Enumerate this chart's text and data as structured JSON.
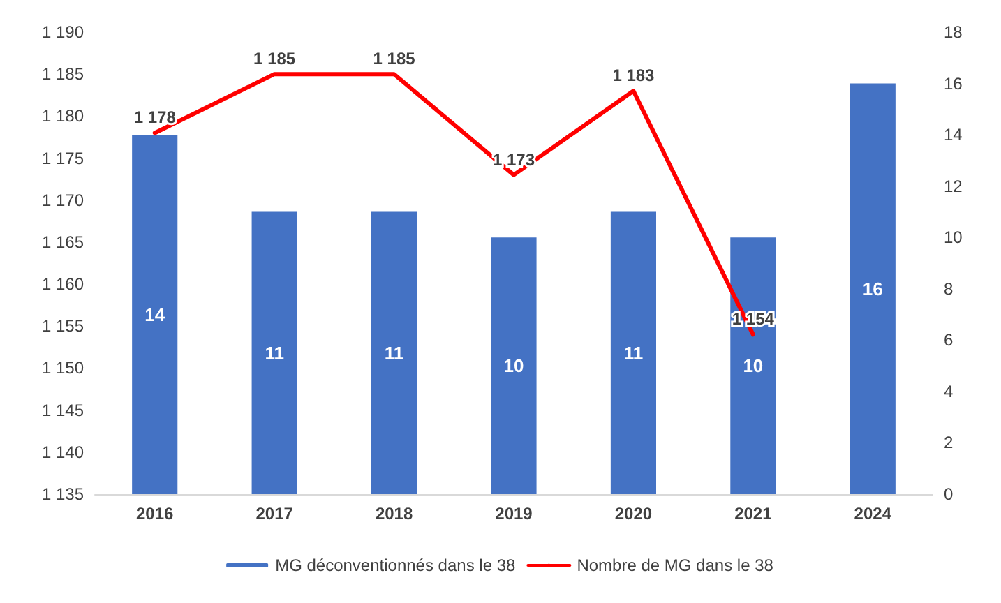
{
  "chart_data": {
    "type": "bar",
    "categories": [
      "2016",
      "2017",
      "2018",
      "2019",
      "2020",
      "2021",
      "2024"
    ],
    "series": [
      {
        "name": "MG déconventionnés dans le 38",
        "axis": "y2",
        "color": "#4472c4",
        "values": [
          14,
          11,
          11,
          10,
          11,
          10,
          16
        ],
        "value_labels": [
          "14",
          "11",
          "11",
          "10",
          "11",
          "10",
          "16"
        ]
      },
      {
        "name": "Nombre de MG dans le 38",
        "type": "line",
        "axis": "y",
        "color": "#ff0000",
        "values": [
          1178,
          1185,
          1185,
          1173,
          1183,
          1154,
          null
        ],
        "value_labels": [
          "1 178",
          "1 185",
          "1 185",
          "1 173",
          "1 183",
          "1 154",
          null
        ]
      }
    ],
    "ylim": [
      1135,
      1190
    ],
    "yticks": [
      {
        "value": 1135,
        "label": "1 135"
      },
      {
        "value": 1140,
        "label": "1 140"
      },
      {
        "value": 1145,
        "label": "1 145"
      },
      {
        "value": 1150,
        "label": "1 150"
      },
      {
        "value": 1155,
        "label": "1 155"
      },
      {
        "value": 1160,
        "label": "1 160"
      },
      {
        "value": 1165,
        "label": "1 165"
      },
      {
        "value": 1170,
        "label": "1 170"
      },
      {
        "value": 1175,
        "label": "1 175"
      },
      {
        "value": 1180,
        "label": "1 180"
      },
      {
        "value": 1185,
        "label": "1 185"
      },
      {
        "value": 1190,
        "label": "1 190"
      }
    ],
    "y2lim": [
      0,
      18
    ],
    "y2ticks": [
      0,
      2,
      4,
      6,
      8,
      10,
      12,
      14,
      16,
      18
    ],
    "legend": "bottom",
    "grid": false,
    "marker": "none",
    "line_style": "solid"
  }
}
